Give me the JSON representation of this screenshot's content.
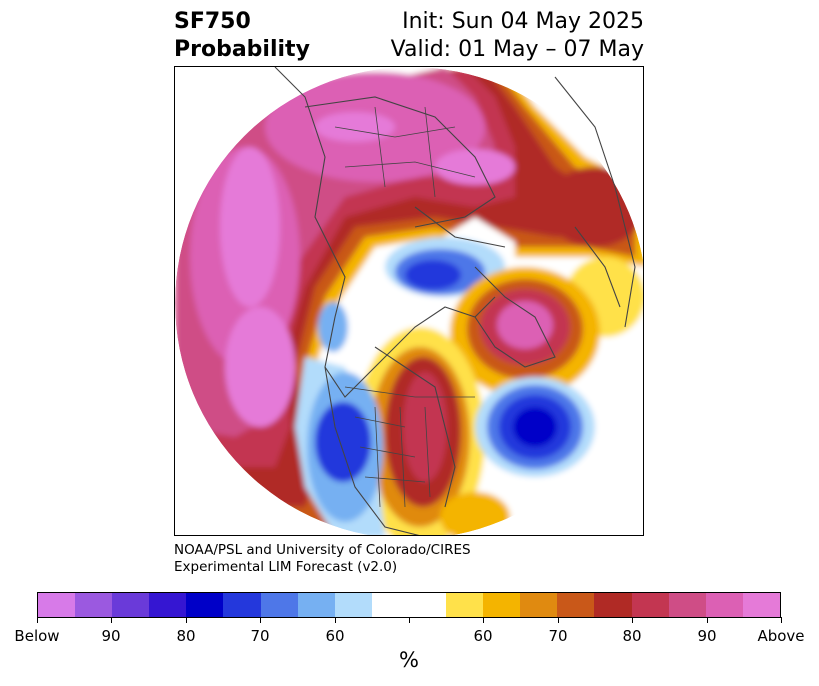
{
  "header": {
    "var_name": "SF750",
    "subtitle": "Probability",
    "init": "Init: Sun 04 May 2025",
    "valid": "Valid: 01 May – 07 May"
  },
  "credit": {
    "line1": "NOAA/PSL and University of Colorado/CIRES",
    "line2": "Experimental LIM Forecast (v2.0)"
  },
  "colorbar": {
    "units": "%",
    "colors": [
      "#d77ae8",
      "#9b59e0",
      "#6a3ad9",
      "#3516d2",
      "#0000c8",
      "#2438dc",
      "#4e77e8",
      "#76b0f2",
      "#b2dcfb",
      "#ffffff",
      "#ffffff",
      "#ffe14a",
      "#f4b400",
      "#e08a10",
      "#c95819",
      "#b02a25",
      "#c33651",
      "#cf4d86",
      "#dc60b4",
      "#e57ad8"
    ],
    "labels": [
      "Below",
      "90",
      "80",
      "70",
      "60",
      "",
      "60",
      "70",
      "80",
      "90",
      "Above"
    ]
  },
  "map": {
    "projection": "north polar stereographic",
    "features": [
      "coastlines",
      "country-borders",
      "state-borders"
    ]
  }
}
